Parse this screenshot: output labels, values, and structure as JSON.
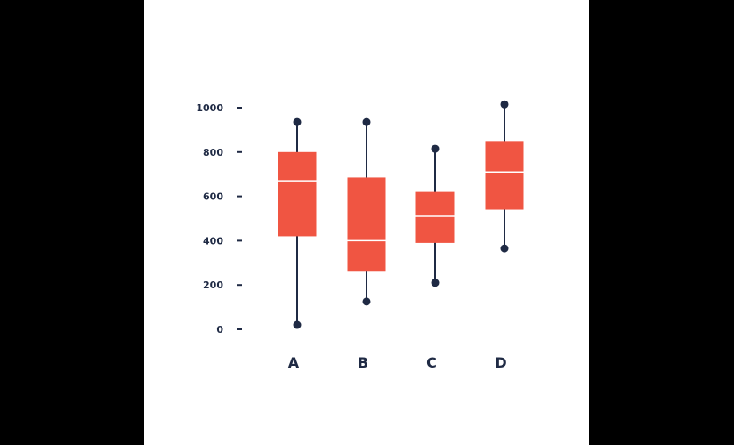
{
  "chart_data": {
    "type": "boxplot",
    "title": "",
    "xlabel": "",
    "ylabel": "",
    "ylim": [
      0,
      1000
    ],
    "yticks": [
      "1000",
      "800",
      "600",
      "400",
      "200",
      "0"
    ],
    "ytick_values": [
      1000,
      800,
      600,
      400,
      200,
      0
    ],
    "categories": [
      "A",
      "B",
      "C",
      "D"
    ],
    "boxes": [
      {
        "category": "A",
        "whisker_low": 20,
        "q1": 420,
        "median": 670,
        "q3": 800,
        "whisker_high": 935
      },
      {
        "category": "B",
        "whisker_low": 125,
        "q1": 260,
        "median": 400,
        "q3": 685,
        "whisker_high": 935
      },
      {
        "category": "C",
        "whisker_low": 210,
        "q1": 390,
        "median": 510,
        "q3": 620,
        "whisker_high": 815
      },
      {
        "category": "D",
        "whisker_low": 365,
        "q1": 540,
        "median": 710,
        "q3": 850,
        "whisker_high": 1015
      }
    ],
    "grid": false,
    "legend": "none",
    "colors": {
      "box": "#f05542",
      "whisker": "#1f2a44",
      "median": "#ffffff",
      "text": "#1f2a44"
    }
  }
}
